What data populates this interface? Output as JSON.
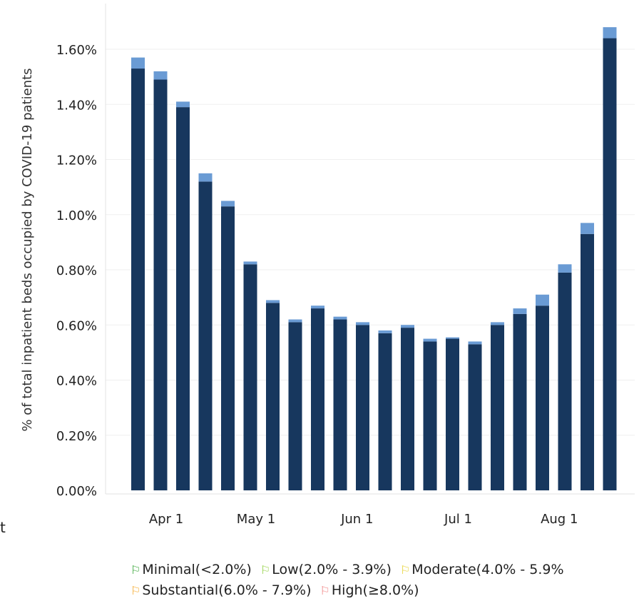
{
  "chart_data": {
    "type": "bar",
    "ylabel": "% of total inpatient beds occupied by COVID-19 patients",
    "ylim": [
      0,
      1.7
    ],
    "y_ticks": [
      "0.00%",
      "0.20%",
      "0.40%",
      "0.60%",
      "0.80%",
      "1.00%",
      "1.20%",
      "1.40%",
      "1.60%"
    ],
    "y_tick_values": [
      0,
      0.2,
      0.4,
      0.6,
      0.8,
      1.0,
      1.2,
      1.4,
      1.6
    ],
    "x_ticks": [
      "Apr 1",
      "May 1",
      "Jun 1",
      "Jul 1",
      "Aug 1"
    ],
    "x_tick_bar_index": [
      1,
      5,
      9.5,
      14,
      18.5
    ],
    "grid": true,
    "stacked": true,
    "series": [
      {
        "color": "#17375e",
        "values": [
          1.53,
          1.49,
          1.39,
          1.12,
          1.03,
          0.82,
          0.68,
          0.61,
          0.66,
          0.62,
          0.6,
          0.57,
          0.59,
          0.54,
          0.55,
          0.53,
          0.6,
          0.64,
          0.67,
          0.79,
          0.93,
          1.64
        ]
      },
      {
        "color": "#6a9bd4",
        "values": [
          0.04,
          0.03,
          0.02,
          0.03,
          0.02,
          0.01,
          0.01,
          0.01,
          0.01,
          0.01,
          0.01,
          0.01,
          0.01,
          0.01,
          0.005,
          0.01,
          0.01,
          0.02,
          0.04,
          0.03,
          0.04,
          0.04
        ]
      }
    ]
  },
  "legend": {
    "items": [
      {
        "label": "Minimal(<2.0%)",
        "color": "#2ca02c"
      },
      {
        "label": "Low(2.0% - 3.9%)",
        "color": "#8fcf3c"
      },
      {
        "label": "Moderate(4.0% - 5.9%",
        "color": "#e6d12a"
      },
      {
        "label": "Substantial(6.0% - 7.9%)",
        "color": "#f5a623"
      },
      {
        "label": "High(≥8.0%)",
        "color": "#f08080"
      }
    ]
  },
  "stray_text": "t"
}
